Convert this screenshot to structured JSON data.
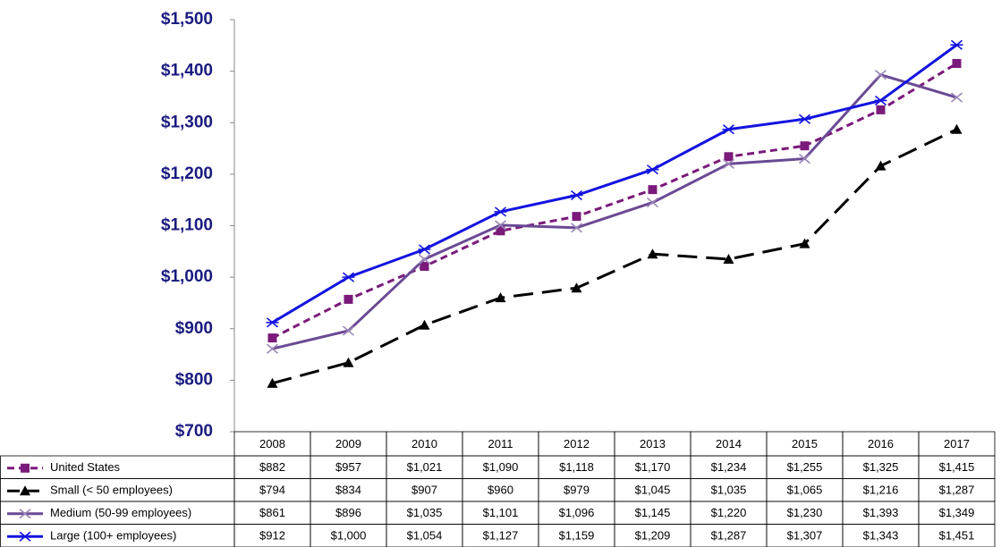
{
  "chart_data": {
    "type": "line",
    "categories": [
      "2008",
      "2009",
      "2010",
      "2011",
      "2012",
      "2013",
      "2014",
      "2015",
      "2016",
      "2017"
    ],
    "ylim": [
      700,
      1500
    ],
    "yticks": [
      {
        "value": 700,
        "label": "$700"
      },
      {
        "value": 800,
        "label": "$800"
      },
      {
        "value": 900,
        "label": "$900"
      },
      {
        "value": 1000,
        "label": "$1,000"
      },
      {
        "value": 1100,
        "label": "$1,100"
      },
      {
        "value": 1200,
        "label": "$1,200"
      },
      {
        "value": 1300,
        "label": "$1,300"
      },
      {
        "value": 1400,
        "label": "$1,400"
      },
      {
        "value": 1500,
        "label": "$1,500"
      }
    ],
    "series": [
      {
        "name": "United States",
        "color": "#7a1a7a",
        "dash": "short",
        "marker": "square",
        "values": [
          882,
          957,
          1021,
          1090,
          1118,
          1170,
          1234,
          1255,
          1325,
          1415
        ],
        "value_labels": [
          "$882",
          "$957",
          "$1,021",
          "$1,090",
          "$1,118",
          "$1,170",
          "$1,234",
          "$1,255",
          "$1,325",
          "$1,415"
        ]
      },
      {
        "name": "Small (< 50 employees)",
        "color": "#000000",
        "dash": "long",
        "marker": "triangle",
        "values": [
          794,
          834,
          907,
          960,
          979,
          1045,
          1035,
          1065,
          1216,
          1287
        ],
        "value_labels": [
          "$794",
          "$834",
          "$907",
          "$960",
          "$979",
          "$1,045",
          "$1,035",
          "$1,065",
          "$1,216",
          "$1,287"
        ]
      },
      {
        "name": "Medium (50-99 employees)",
        "color": "#6a4a94",
        "dash": "solid",
        "marker": "x",
        "values": [
          861,
          896,
          1035,
          1101,
          1096,
          1145,
          1220,
          1230,
          1393,
          1349
        ],
        "value_labels": [
          "$861",
          "$896",
          "$1,035",
          "$1,101",
          "$1,096",
          "$1,145",
          "$1,220",
          "$1,230",
          "$1,393",
          "$1,349"
        ]
      },
      {
        "name": "Large (100+ employees)",
        "color": "#1414e0",
        "dash": "solid",
        "marker": "star",
        "values": [
          912,
          1000,
          1054,
          1127,
          1159,
          1209,
          1287,
          1307,
          1343,
          1451
        ],
        "value_labels": [
          "$912",
          "$1,000",
          "$1,054",
          "$1,127",
          "$1,159",
          "$1,209",
          "$1,287",
          "$1,307",
          "$1,343",
          "$1,451"
        ]
      }
    ]
  }
}
